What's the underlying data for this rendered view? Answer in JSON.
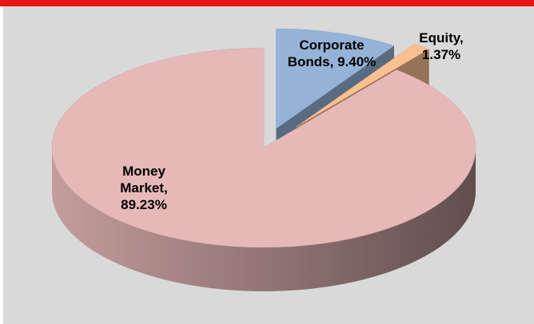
{
  "chart_data": {
    "type": "pie3d",
    "categories": [
      "Corporate Bonds,",
      "Equity,",
      "Money Market,"
    ],
    "values": [
      9.4,
      1.37,
      89.23
    ],
    "value_labels": [
      "9.40%",
      "1.37%",
      "89.23%"
    ],
    "colors": [
      "#95b3d7",
      "#fac090",
      "#e6b9b8"
    ]
  }
}
